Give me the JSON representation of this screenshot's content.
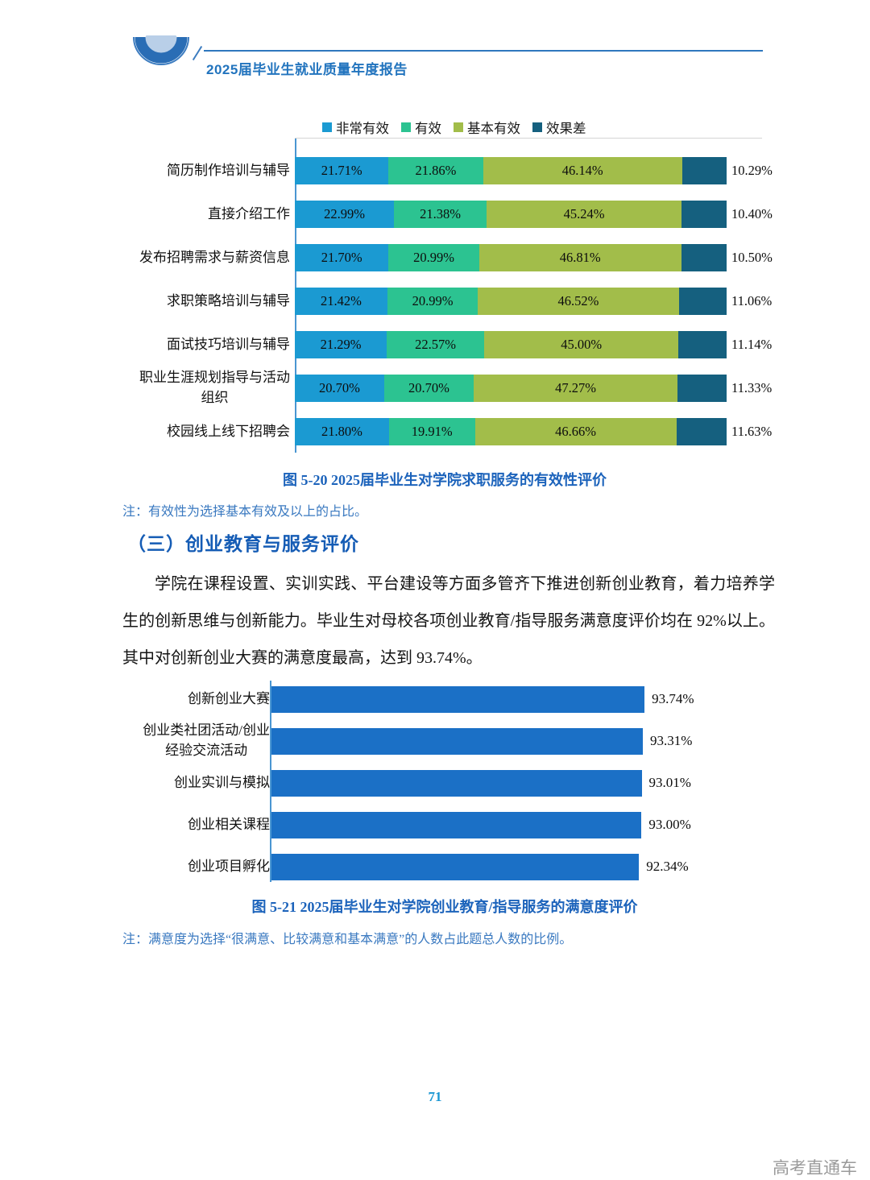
{
  "header": {
    "title": "2025届毕业生就业质量年度报告"
  },
  "figures": {
    "fig20": {
      "caption": "图 5-20  2025届毕业生对学院求职服务的有效性评价",
      "note": "注：有效性为选择基本有效及以上的占比。"
    },
    "section_heading": "（三）创业教育与服务评价",
    "paragraph": "学院在课程设置、实训实践、平台建设等方面多管齐下推进创新创业教育，着力培养学生的创新思维与创新能力。毕业生对母校各项创业教育/指导服务满意度评价均在 92%以上。其中对创新创业大赛的满意度最高，达到 93.74%。",
    "fig21": {
      "caption": "图 5-21  2025届毕业生对学院创业教育/指导服务的满意度评价",
      "note": "注：满意度为选择“很满意、比较满意和基本满意”的人数占此题总人数的比例。"
    }
  },
  "footer": {
    "page_number": "71",
    "watermark": "高考直通车"
  },
  "colors": {
    "very_effective": "#1b9ad2",
    "effective": "#2cc391",
    "basically_effective": "#a2bd4a",
    "poor_effect": "#15607f",
    "satisfaction_bar": "#1b70c6",
    "axis_line": "#4a96d2",
    "accent_blue": "#1c63bb"
  },
  "chart_data": [
    {
      "type": "bar",
      "orientation": "horizontal",
      "stacked": true,
      "title": "图 5-20 2025届毕业生对学院求职服务的有效性评价",
      "xlabel": "",
      "ylabel": "",
      "xlim": [
        0,
        100
      ],
      "unit": "%",
      "legend_position": "top",
      "grid": false,
      "categories": [
        "简历制作培训与辅导",
        "直接介绍工作",
        "发布招聘需求与薪资信息",
        "求职策略培训与辅导",
        "面试技巧培训与辅导",
        "职业生涯规划指导与活动\n组织",
        "校园线上线下招聘会"
      ],
      "series": [
        {
          "name": "非常有效",
          "color": "#1b9ad2",
          "values": [
            21.71,
            22.99,
            21.7,
            21.42,
            21.29,
            20.7,
            21.8
          ]
        },
        {
          "name": "有效",
          "color": "#2cc391",
          "values": [
            21.86,
            21.38,
            20.99,
            20.99,
            22.57,
            20.7,
            19.91
          ]
        },
        {
          "name": "基本有效",
          "color": "#a2bd4a",
          "values": [
            46.14,
            45.24,
            46.81,
            46.52,
            45.0,
            47.27,
            46.66
          ]
        },
        {
          "name": "效果差",
          "color": "#15607f",
          "values": [
            10.29,
            10.4,
            10.5,
            11.06,
            11.14,
            11.33,
            11.63
          ]
        }
      ]
    },
    {
      "type": "bar",
      "orientation": "horizontal",
      "stacked": false,
      "title": "图 5-21 2025届毕业生对学院创业教育/指导服务的满意度评价",
      "xlabel": "",
      "ylabel": "",
      "xlim": [
        0,
        100
      ],
      "unit": "%",
      "grid": false,
      "categories": [
        "创新创业大赛",
        "创业类社团活动/创业\n经验交流活动",
        "创业实训与模拟",
        "创业相关课程",
        "创业项目孵化"
      ],
      "values": [
        93.74,
        93.31,
        93.01,
        93.0,
        92.34
      ],
      "bar_color": "#1b70c6"
    }
  ]
}
